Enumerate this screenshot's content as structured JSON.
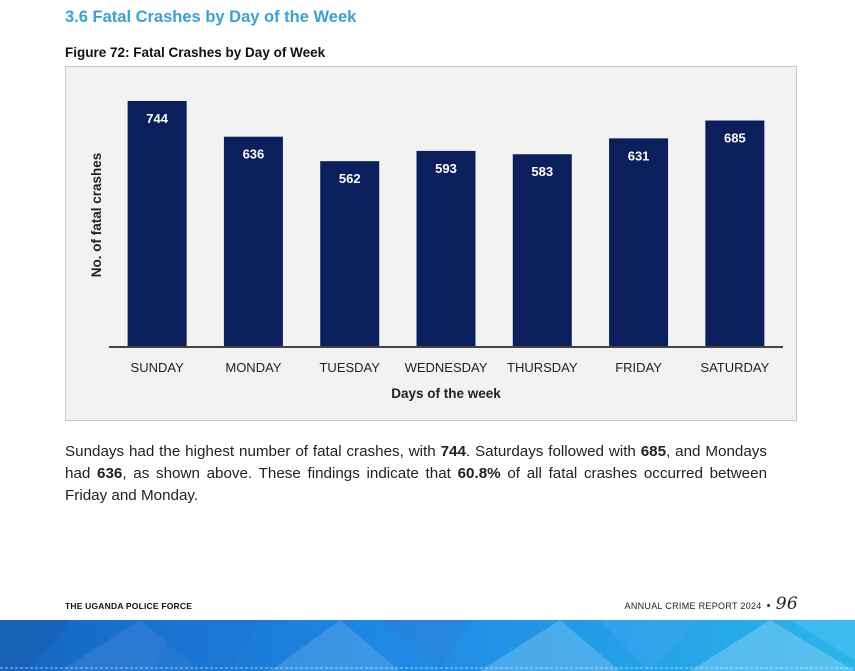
{
  "section": {
    "title": "3.6 Fatal Crashes by Day of the Week"
  },
  "figure": {
    "caption": "Figure 72: Fatal Crashes by Day of Week"
  },
  "chart_data": {
    "type": "bar",
    "categories": [
      "SUNDAY",
      "MONDAY",
      "TUESDAY",
      "WEDNESDAY",
      "THURSDAY",
      "FRIDAY",
      "SATURDAY"
    ],
    "values": [
      744,
      636,
      562,
      593,
      583,
      631,
      685
    ],
    "title": "",
    "xlabel": "Days of the week",
    "ylabel": "No. of fatal crashes",
    "ylim": [
      0,
      800
    ],
    "grid": false,
    "legend": "none",
    "data_labels": true,
    "bar_color": "#0b1f5c",
    "label_color": "#ffffff"
  },
  "paragraph": {
    "s1": "Sundays had the highest number of fatal crashes, with ",
    "v1": "744",
    "s2": ".  Saturdays followed with ",
    "v2": "685",
    "s3": ", and Mondays had ",
    "v3": "636",
    "s4": ", as shown above.  These findings indicate that ",
    "v4": "60.8%",
    "s5": " of all fatal crashes occurred between Friday and Monday."
  },
  "footer": {
    "left": "THE UGANDA POLICE FORCE",
    "right": "ANNUAL CRIME REPORT 2024",
    "separator": "•",
    "page_number": "96"
  },
  "colors": {
    "section_title": "#3aa0d8",
    "banner_dark": "#1565c0",
    "banner_light": "#2bb5ea"
  }
}
